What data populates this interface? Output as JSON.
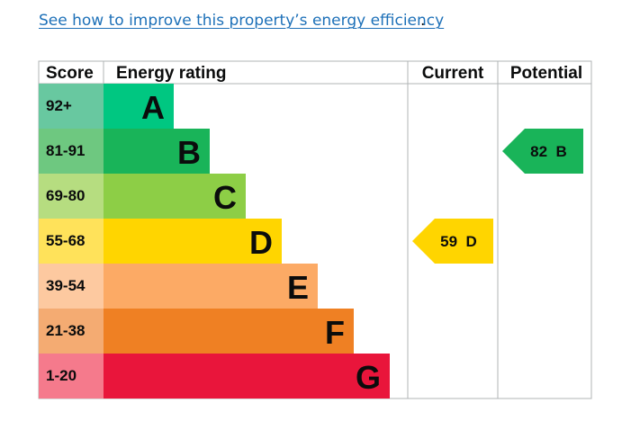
{
  "improve_link": {
    "text": "See how to improve this property’s energy efficiency",
    "suffix": "."
  },
  "chart_data": {
    "type": "table",
    "headers": {
      "score": "Score",
      "rating": "Energy rating",
      "current": "Current",
      "potential": "Potential"
    },
    "bands": [
      {
        "score": "92+",
        "letter": "A",
        "score_color": "#68c8a0",
        "bar_color": "#00c781"
      },
      {
        "score": "81-91",
        "letter": "B",
        "score_color": "#6ec880",
        "bar_color": "#19b459"
      },
      {
        "score": "69-80",
        "letter": "C",
        "score_color": "#b6dd80",
        "bar_color": "#8dce46"
      },
      {
        "score": "55-68",
        "letter": "D",
        "score_color": "#ffe25a",
        "bar_color": "#ffd500"
      },
      {
        "score": "39-54",
        "letter": "E",
        "score_color": "#fdc9a0",
        "bar_color": "#fcaa65"
      },
      {
        "score": "21-38",
        "letter": "F",
        "score_color": "#f4ab72",
        "bar_color": "#ef8023"
      },
      {
        "score": "1-20",
        "letter": "G",
        "score_color": "#f57a8c",
        "bar_color": "#e9153b"
      }
    ],
    "current": {
      "value": 59,
      "letter": "D",
      "label": "59  D",
      "color": "#ffd500"
    },
    "potential": {
      "value": 82,
      "letter": "B",
      "label": "82  B",
      "color": "#19b459"
    }
  }
}
